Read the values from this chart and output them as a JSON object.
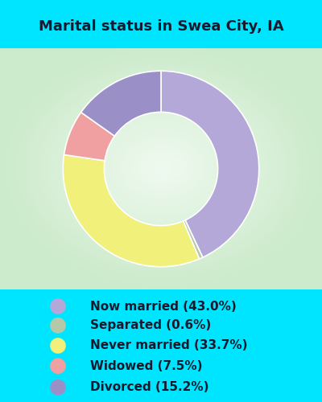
{
  "title": "Marital status in Swea City, IA",
  "slices": [
    43.0,
    0.6,
    33.7,
    7.5,
    15.2
  ],
  "labels": [
    "Now married (43.0%)",
    "Separated (0.6%)",
    "Never married (33.7%)",
    "Widowed (7.5%)",
    "Divorced (15.2%)"
  ],
  "colors": [
    "#b3a8d8",
    "#b5c9a8",
    "#f0f07a",
    "#f0a0a0",
    "#9b8fc8"
  ],
  "donut_width": 0.42,
  "bg_cyan": "#00e5ff",
  "bg_chart_edge": "#c8e8c0",
  "bg_chart_center": "#e8f8e8",
  "title_fontsize": 13,
  "title_color": "#1a1a2e",
  "legend_fontsize": 11,
  "legend_color": "#1a1a2e",
  "start_angle": 90
}
